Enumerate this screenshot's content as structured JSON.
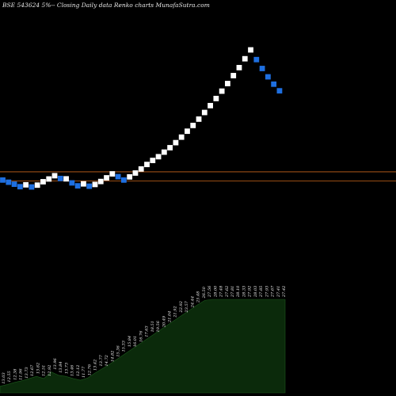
{
  "chart_data": {
    "type": "renko",
    "title": "BSE 543624  5%-- Closing Daily data  Renko  charts MunafaSutra.com",
    "background": "#000000",
    "colors": {
      "up": "#ffffff",
      "down": "#1e6fe0",
      "reference_line": "#c8651b",
      "volume_fill": "#0b2a0b"
    },
    "reference_levels": [
      21.4,
      18.9
    ],
    "price_range": [
      12.0,
      60.0
    ],
    "bricks": [
      {
        "dir": "down",
        "value": 19.13
      },
      {
        "dir": "down",
        "value": 18.53
      },
      {
        "dir": "down",
        "value": 17.98
      },
      {
        "dir": "down",
        "value": 17.3
      },
      {
        "dir": "up",
        "value": 17.81
      },
      {
        "dir": "down",
        "value": 17.22
      },
      {
        "dir": "up",
        "value": 17.73
      },
      {
        "dir": "up",
        "value": 18.66
      },
      {
        "dir": "up",
        "value": 19.42
      },
      {
        "dir": "up",
        "value": 20.32
      },
      {
        "dir": "down",
        "value": 19.56
      },
      {
        "dir": "up",
        "value": 19.46
      },
      {
        "dir": "down",
        "value": 18.34
      },
      {
        "dir": "down",
        "value": 17.53
      },
      {
        "dir": "up",
        "value": 18.07
      },
      {
        "dir": "down",
        "value": 17.43
      },
      {
        "dir": "up",
        "value": 17.91
      },
      {
        "dir": "up",
        "value": 18.73
      },
      {
        "dir": "up",
        "value": 19.74
      },
      {
        "dir": "up",
        "value": 20.83
      },
      {
        "dir": "down",
        "value": 20.06
      },
      {
        "dir": "down",
        "value": 19.13
      },
      {
        "dir": "up",
        "value": 20.0
      },
      {
        "dir": "up",
        "value": 21.06
      },
      {
        "dir": "up",
        "value": 22.18
      },
      {
        "dir": "up",
        "value": 23.42
      },
      {
        "dir": "up",
        "value": 24.53
      },
      {
        "dir": "up",
        "value": 25.56
      },
      {
        "dir": "up",
        "value": 26.82
      },
      {
        "dir": "up",
        "value": 28.04
      },
      {
        "dir": "up",
        "value": 29.43
      },
      {
        "dir": "up",
        "value": 30.95
      },
      {
        "dir": "up",
        "value": 32.58
      },
      {
        "dir": "up",
        "value": 34.17
      },
      {
        "dir": "up",
        "value": 35.91
      },
      {
        "dir": "up",
        "value": 37.74
      },
      {
        "dir": "up",
        "value": 39.63
      },
      {
        "dir": "up",
        "value": 41.59
      },
      {
        "dir": "up",
        "value": 43.62
      },
      {
        "dir": "up",
        "value": 45.71
      },
      {
        "dir": "up",
        "value": 47.9
      },
      {
        "dir": "up",
        "value": 50.1
      },
      {
        "dir": "up",
        "value": 52.54
      },
      {
        "dir": "up",
        "value": 54.98
      },
      {
        "dir": "down",
        "value": 52.31
      },
      {
        "dir": "down",
        "value": 49.86
      },
      {
        "dir": "down",
        "value": 47.56
      },
      {
        "dir": "down",
        "value": 45.54
      },
      {
        "dir": "down",
        "value": 43.71
      }
    ],
    "volume_labels": [
      "13.03",
      "12.55",
      "12.38",
      "11.96",
      "13.73",
      "12.67",
      "13.82",
      "12.51",
      "12.92",
      "13.96",
      "13.84",
      "13.73",
      "13.46",
      "12.12",
      "11.77",
      "12.76",
      "13.42",
      "13.77",
      "14.72",
      "14.82",
      "15.36",
      "15.33",
      "15.84",
      "16.01",
      "16.76",
      "17.63",
      "18.51",
      "19.56",
      "20.49",
      "21.04",
      "21.92",
      "22.92",
      "23.57",
      "24.44",
      "25.48",
      "26.50",
      "27.56",
      "28.00",
      "27.48",
      "27.62",
      "27.81",
      "28.10",
      "28.33",
      "27.92",
      "28.03",
      "27.85",
      "27.93",
      "27.67",
      "27.41",
      "27.42"
    ],
    "volume_area": [
      12.2,
      12.5,
      12.9,
      13.2,
      13.6,
      14.0,
      13.6,
      14.8,
      14.2,
      14.0,
      13.6,
      13.3,
      13.7,
      14.6,
      15.4,
      16.2,
      17.1,
      18.0,
      18.9,
      19.8,
      20.7,
      21.6,
      22.5,
      23.4,
      24.3,
      25.2,
      26.1,
      27.0,
      27.8,
      28.0,
      28.0,
      28.0,
      28.0,
      28.0,
      28.0,
      28.0,
      28.0,
      28.0,
      28.0,
      28.0
    ]
  }
}
